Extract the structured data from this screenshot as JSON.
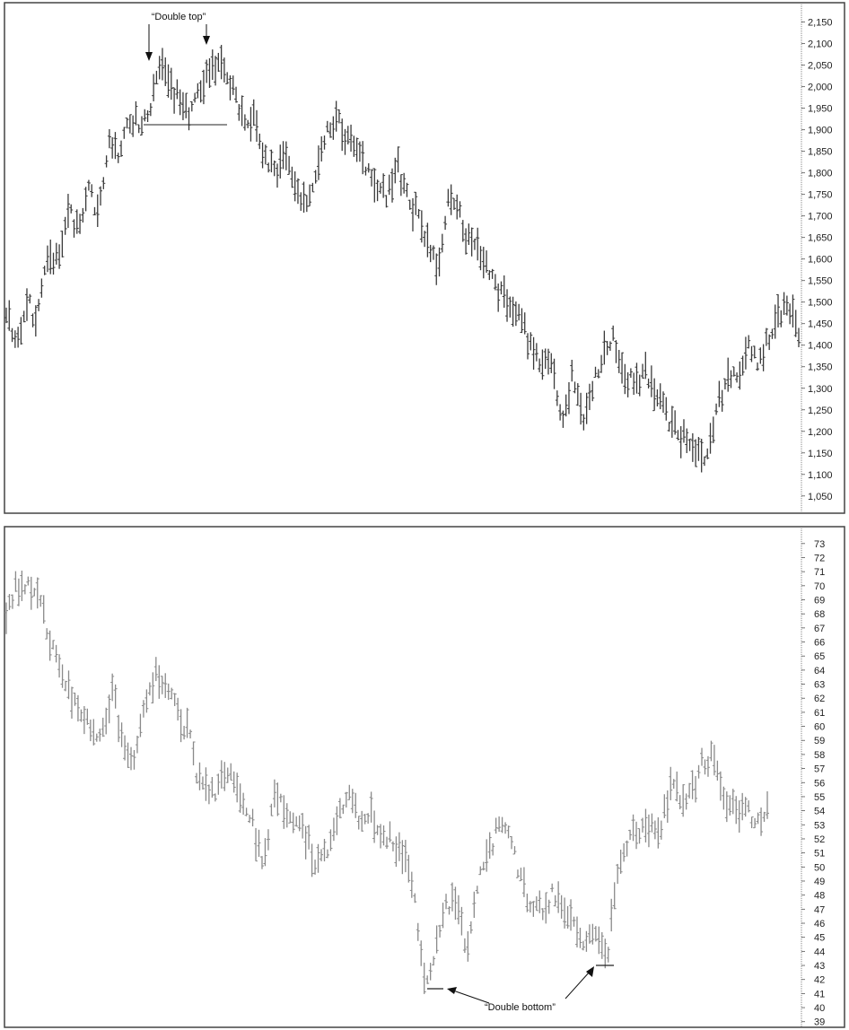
{
  "chart_data": [
    {
      "type": "bar",
      "style": "ohlc-price-bars",
      "title": "",
      "xlabel": "",
      "ylabel": "",
      "ylim": [
        1010,
        2195
      ],
      "yticks": [
        1050,
        1100,
        1150,
        1200,
        1250,
        1300,
        1350,
        1400,
        1450,
        1500,
        1550,
        1600,
        1650,
        1700,
        1750,
        1800,
        1850,
        1900,
        1950,
        2000,
        2050,
        2100,
        2150
      ],
      "ytick_labels": [
        "1,050",
        "1,100",
        "1,150",
        "1,200",
        "1,250",
        "1,300",
        "1,350",
        "1,400",
        "1,450",
        "1,500",
        "1,550",
        "1,600",
        "1,650",
        "1,700",
        "1,750",
        "1,800",
        "1,850",
        "1,900",
        "1,950",
        "2,000",
        "2,050",
        "2,100",
        "2,150"
      ],
      "axis_side": "right",
      "grid": false,
      "color": "#3a3a3a",
      "bar_count": 270,
      "price_path": [
        1480,
        1410,
        1500,
        1460,
        1620,
        1600,
        1720,
        1660,
        1770,
        1700,
        1880,
        1840,
        1925,
        1920,
        1945,
        2050,
        2000,
        1960,
        1940,
        1990,
        2050,
        2040,
        1990,
        1930,
        1930,
        1840,
        1800,
        1840,
        1770,
        1720,
        1790,
        1900,
        1930,
        1880,
        1860,
        1820,
        1780,
        1740,
        1820,
        1740,
        1700,
        1620,
        1580,
        1740,
        1700,
        1640,
        1620,
        1560,
        1520,
        1480,
        1450,
        1400,
        1340,
        1370,
        1220,
        1330,
        1230,
        1300,
        1380,
        1410,
        1330,
        1310,
        1340,
        1290,
        1250,
        1200,
        1180,
        1160,
        1130,
        1250,
        1310,
        1330,
        1400,
        1350,
        1410,
        1460,
        1500,
        1430
      ],
      "annotation": {
        "text": "“Double top”",
        "points": [
          2050,
          2060
        ],
        "neckline": 1920
      }
    },
    {
      "type": "bar",
      "style": "ohlc-price-bars",
      "title": "",
      "xlabel": "",
      "ylabel": "",
      "ylim": [
        38.6,
        74.2
      ],
      "yticks": [
        39,
        40,
        41,
        42,
        43,
        44,
        45,
        46,
        47,
        48,
        49,
        50,
        51,
        52,
        53,
        54,
        55,
        56,
        57,
        58,
        59,
        60,
        61,
        62,
        63,
        64,
        65,
        66,
        67,
        68,
        69,
        70,
        71,
        72,
        73
      ],
      "ytick_labels": [
        "39",
        "40",
        "41",
        "42",
        "43",
        "44",
        "45",
        "46",
        "47",
        "48",
        "49",
        "50",
        "51",
        "52",
        "53",
        "54",
        "55",
        "56",
        "57",
        "58",
        "59",
        "60",
        "61",
        "62",
        "63",
        "64",
        "65",
        "66",
        "67",
        "68",
        "69",
        "70",
        "71",
        "72",
        "73"
      ],
      "axis_side": "right",
      "grid": false,
      "color": "#8a8a8a",
      "bar_count": 245,
      "price_path": [
        68,
        70,
        69.8,
        69.5,
        66,
        64,
        62,
        61,
        59.5,
        60,
        62.5,
        58,
        57.5,
        62,
        64,
        63,
        61,
        59.5,
        56,
        55,
        56,
        57,
        55,
        53,
        50,
        55,
        54,
        53,
        52,
        50,
        51,
        54,
        55,
        53,
        54,
        52,
        52,
        51,
        48,
        42,
        44,
        47,
        48,
        44,
        49,
        51,
        53,
        52,
        49,
        47,
        47,
        48,
        47,
        46,
        44.5,
        45.5,
        43.5,
        49,
        52,
        52.5,
        53,
        52.5,
        56,
        55,
        55.5,
        57.5,
        58,
        55,
        54,
        54,
        53.5,
        54
      ],
      "annotation": {
        "text": "“Double bottom”",
        "points": [
          41.5,
          42.8
        ]
      }
    }
  ]
}
